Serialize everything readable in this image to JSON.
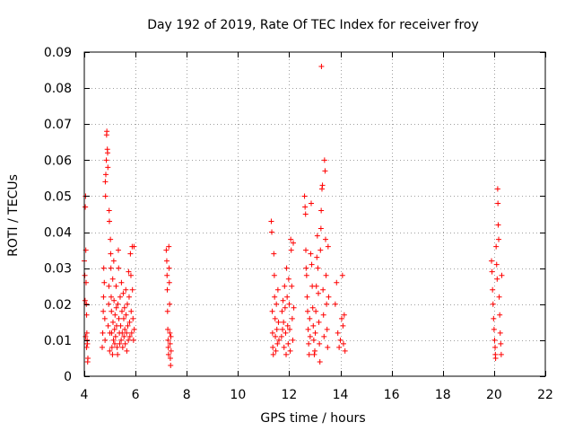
{
  "chart_data": {
    "type": "scatter",
    "title": "Day 192 of 2019, Rate Of TEC Index for receiver froy",
    "xlabel": "GPS time / hours",
    "ylabel": "ROTI / TECUs",
    "xlim": [
      4,
      22
    ],
    "ylim": [
      0,
      0.09
    ],
    "x_ticks": [
      4,
      6,
      8,
      10,
      12,
      14,
      16,
      18,
      20,
      22
    ],
    "x_tick_labels": [
      "4",
      "6",
      "8",
      "10",
      "12",
      "14",
      "16",
      "18",
      "20",
      "22"
    ],
    "y_ticks": [
      0,
      0.01,
      0.02,
      0.03,
      0.04,
      0.05,
      0.06,
      0.07,
      0.08,
      0.09
    ],
    "y_tick_labels": [
      "0",
      "0.01",
      "0.02",
      "0.03",
      "0.04",
      "0.05",
      "0.06",
      "0.07",
      "0.08",
      "0.09"
    ],
    "grid": true,
    "marker": "+",
    "marker_color": "#ff0000",
    "series": [
      {
        "name": "ROTI",
        "points": [
          [
            4.0,
            0.032
          ],
          [
            4.02,
            0.028
          ],
          [
            4.03,
            0.021
          ],
          [
            4.04,
            0.047
          ],
          [
            4.05,
            0.05
          ],
          [
            4.06,
            0.035
          ],
          [
            4.07,
            0.026
          ],
          [
            4.08,
            0.02
          ],
          [
            4.09,
            0.017
          ],
          [
            4.1,
            0.012
          ],
          [
            4.11,
            0.01
          ],
          [
            4.12,
            0.009
          ],
          [
            4.13,
            0.004
          ],
          [
            4.14,
            0.005
          ],
          [
            4.05,
            0.011
          ],
          [
            4.09,
            0.008
          ],
          [
            4.7,
            0.008
          ],
          [
            4.72,
            0.012
          ],
          [
            4.74,
            0.018
          ],
          [
            4.75,
            0.022
          ],
          [
            4.76,
            0.03
          ],
          [
            4.78,
            0.026
          ],
          [
            4.8,
            0.016
          ],
          [
            4.81,
            0.01
          ],
          [
            4.82,
            0.054
          ],
          [
            4.83,
            0.05
          ],
          [
            4.84,
            0.056
          ],
          [
            4.86,
            0.06
          ],
          [
            4.87,
            0.067
          ],
          [
            4.88,
            0.068
          ],
          [
            4.9,
            0.063
          ],
          [
            4.91,
            0.062
          ],
          [
            4.92,
            0.058
          ],
          [
            4.93,
            0.014
          ],
          [
            4.95,
            0.02
          ],
          [
            4.96,
            0.025
          ],
          [
            4.97,
            0.046
          ],
          [
            4.98,
            0.043
          ],
          [
            4.99,
            0.007
          ],
          [
            5.0,
            0.012
          ],
          [
            5.02,
            0.038
          ],
          [
            5.03,
            0.034
          ],
          [
            5.04,
            0.03
          ],
          [
            5.05,
            0.022
          ],
          [
            5.06,
            0.018
          ],
          [
            5.07,
            0.012
          ],
          [
            5.08,
            0.008
          ],
          [
            5.1,
            0.006
          ],
          [
            5.11,
            0.027
          ],
          [
            5.12,
            0.015
          ],
          [
            5.14,
            0.01
          ],
          [
            5.15,
            0.032
          ],
          [
            5.16,
            0.021
          ],
          [
            5.18,
            0.013
          ],
          [
            5.19,
            0.009
          ],
          [
            5.2,
            0.017
          ],
          [
            5.22,
            0.011
          ],
          [
            5.24,
            0.025
          ],
          [
            5.25,
            0.019
          ],
          [
            5.26,
            0.014
          ],
          [
            5.28,
            0.008
          ],
          [
            5.3,
            0.006
          ],
          [
            5.31,
            0.02
          ],
          [
            5.33,
            0.035
          ],
          [
            5.34,
            0.03
          ],
          [
            5.35,
            0.016
          ],
          [
            5.37,
            0.012
          ],
          [
            5.38,
            0.009
          ],
          [
            5.4,
            0.022
          ],
          [
            5.42,
            0.014
          ],
          [
            5.44,
            0.01
          ],
          [
            5.45,
            0.026
          ],
          [
            5.47,
            0.018
          ],
          [
            5.48,
            0.012
          ],
          [
            5.5,
            0.008
          ],
          [
            5.52,
            0.023
          ],
          [
            5.54,
            0.016
          ],
          [
            5.55,
            0.011
          ],
          [
            5.57,
            0.019
          ],
          [
            5.58,
            0.013
          ],
          [
            5.6,
            0.009
          ],
          [
            5.62,
            0.024
          ],
          [
            5.63,
            0.017
          ],
          [
            5.65,
            0.012
          ],
          [
            5.66,
            0.007
          ],
          [
            5.68,
            0.02
          ],
          [
            5.7,
            0.014
          ],
          [
            5.72,
            0.01
          ],
          [
            5.73,
            0.029
          ],
          [
            5.75,
            0.022
          ],
          [
            5.77,
            0.015
          ],
          [
            5.78,
            0.011
          ],
          [
            5.8,
            0.034
          ],
          [
            5.82,
            0.028
          ],
          [
            5.83,
            0.018
          ],
          [
            5.85,
            0.012
          ],
          [
            5.87,
            0.036
          ],
          [
            5.88,
            0.024
          ],
          [
            5.9,
            0.016
          ],
          [
            5.92,
            0.01
          ],
          [
            5.94,
            0.036
          ],
          [
            5.95,
            0.013
          ],
          [
            7.2,
            0.035
          ],
          [
            7.22,
            0.032
          ],
          [
            7.23,
            0.028
          ],
          [
            7.24,
            0.024
          ],
          [
            7.25,
            0.018
          ],
          [
            7.26,
            0.013
          ],
          [
            7.27,
            0.01
          ],
          [
            7.28,
            0.008
          ],
          [
            7.29,
            0.006
          ],
          [
            7.3,
            0.036
          ],
          [
            7.31,
            0.03
          ],
          [
            7.32,
            0.026
          ],
          [
            7.33,
            0.02
          ],
          [
            7.34,
            0.012
          ],
          [
            7.35,
            0.009
          ],
          [
            7.36,
            0.005
          ],
          [
            7.37,
            0.003
          ],
          [
            7.38,
            0.011
          ],
          [
            7.39,
            0.007
          ],
          [
            11.3,
            0.043
          ],
          [
            11.32,
            0.04
          ],
          [
            11.34,
            0.018
          ],
          [
            11.35,
            0.012
          ],
          [
            11.36,
            0.008
          ],
          [
            11.38,
            0.006
          ],
          [
            11.4,
            0.034
          ],
          [
            11.42,
            0.028
          ],
          [
            11.43,
            0.022
          ],
          [
            11.45,
            0.016
          ],
          [
            11.46,
            0.011
          ],
          [
            11.48,
            0.007
          ],
          [
            11.5,
            0.02
          ],
          [
            11.52,
            0.013
          ],
          [
            11.54,
            0.009
          ],
          [
            11.56,
            0.024
          ],
          [
            11.58,
            0.015
          ],
          [
            11.6,
            0.01
          ],
          [
            11.7,
            0.011
          ],
          [
            11.72,
            0.018
          ],
          [
            11.74,
            0.013
          ],
          [
            11.76,
            0.021
          ],
          [
            11.78,
            0.015
          ],
          [
            11.8,
            0.008
          ],
          [
            11.82,
            0.025
          ],
          [
            11.84,
            0.019
          ],
          [
            11.86,
            0.012
          ],
          [
            11.88,
            0.006
          ],
          [
            11.9,
            0.03
          ],
          [
            11.92,
            0.022
          ],
          [
            11.94,
            0.014
          ],
          [
            11.96,
            0.009
          ],
          [
            11.98,
            0.027
          ],
          [
            12.0,
            0.02
          ],
          [
            12.02,
            0.013
          ],
          [
            12.04,
            0.007
          ],
          [
            12.06,
            0.038
          ],
          [
            12.08,
            0.035
          ],
          [
            12.1,
            0.025
          ],
          [
            12.12,
            0.016
          ],
          [
            12.14,
            0.01
          ],
          [
            12.16,
            0.037
          ],
          [
            12.18,
            0.019
          ],
          [
            12.6,
            0.05
          ],
          [
            12.62,
            0.047
          ],
          [
            12.64,
            0.045
          ],
          [
            12.65,
            0.035
          ],
          [
            12.66,
            0.03
          ],
          [
            12.68,
            0.028
          ],
          [
            12.7,
            0.022
          ],
          [
            12.72,
            0.018
          ],
          [
            12.74,
            0.013
          ],
          [
            12.76,
            0.009
          ],
          [
            12.78,
            0.006
          ],
          [
            12.8,
            0.016
          ],
          [
            12.82,
            0.011
          ],
          [
            12.84,
            0.034
          ],
          [
            12.86,
            0.048
          ],
          [
            12.88,
            0.031
          ],
          [
            12.9,
            0.025
          ],
          [
            12.92,
            0.019
          ],
          [
            12.94,
            0.014
          ],
          [
            12.96,
            0.01
          ],
          [
            12.98,
            0.006
          ],
          [
            13.0,
            0.007
          ],
          [
            13.02,
            0.012
          ],
          [
            13.04,
            0.018
          ],
          [
            13.06,
            0.025
          ],
          [
            13.08,
            0.033
          ],
          [
            13.1,
            0.039
          ],
          [
            13.12,
            0.03
          ],
          [
            13.14,
            0.023
          ],
          [
            13.16,
            0.015
          ],
          [
            13.18,
            0.009
          ],
          [
            13.2,
            0.004
          ],
          [
            13.22,
            0.035
          ],
          [
            13.24,
            0.041
          ],
          [
            13.25,
            0.046
          ],
          [
            13.26,
            0.086
          ],
          [
            13.28,
            0.052
          ],
          [
            13.3,
            0.053
          ],
          [
            13.32,
            0.024
          ],
          [
            13.34,
            0.017
          ],
          [
            13.36,
            0.011
          ],
          [
            13.38,
            0.06
          ],
          [
            13.4,
            0.057
          ],
          [
            13.42,
            0.038
          ],
          [
            13.44,
            0.028
          ],
          [
            13.46,
            0.02
          ],
          [
            13.48,
            0.013
          ],
          [
            13.5,
            0.008
          ],
          [
            13.52,
            0.036
          ],
          [
            13.54,
            0.022
          ],
          [
            13.8,
            0.02
          ],
          [
            13.85,
            0.026
          ],
          [
            13.9,
            0.012
          ],
          [
            13.95,
            0.008
          ],
          [
            14.0,
            0.01
          ],
          [
            14.05,
            0.016
          ],
          [
            14.08,
            0.028
          ],
          [
            14.1,
            0.014
          ],
          [
            14.12,
            0.009
          ],
          [
            14.15,
            0.017
          ],
          [
            14.18,
            0.007
          ],
          [
            19.9,
            0.032
          ],
          [
            19.92,
            0.029
          ],
          [
            19.94,
            0.024
          ],
          [
            19.96,
            0.02
          ],
          [
            19.98,
            0.016
          ],
          [
            20.0,
            0.013
          ],
          [
            20.02,
            0.01
          ],
          [
            20.04,
            0.008
          ],
          [
            20.05,
            0.006
          ],
          [
            20.06,
            0.005
          ],
          [
            20.08,
            0.036
          ],
          [
            20.1,
            0.031
          ],
          [
            20.12,
            0.027
          ],
          [
            20.14,
            0.052
          ],
          [
            20.15,
            0.048
          ],
          [
            20.16,
            0.042
          ],
          [
            20.18,
            0.038
          ],
          [
            20.2,
            0.022
          ],
          [
            20.22,
            0.017
          ],
          [
            20.24,
            0.012
          ],
          [
            20.26,
            0.009
          ],
          [
            20.28,
            0.006
          ],
          [
            20.3,
            0.028
          ]
        ]
      }
    ]
  }
}
